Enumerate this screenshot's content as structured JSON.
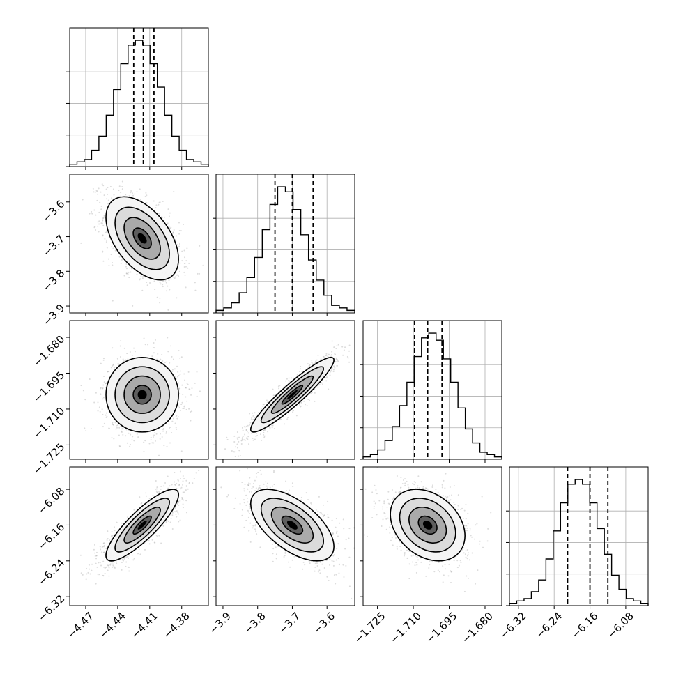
{
  "chart_data": {
    "type": "corner",
    "title": "",
    "parameters": [
      {
        "index": 0,
        "range": [
          -4.485,
          -4.355
        ],
        "ticks": [
          "−4.47",
          "−4.44",
          "−4.41",
          "−4.38"
        ],
        "tick_values": [
          -4.47,
          -4.44,
          -4.41,
          -4.38
        ]
      },
      {
        "index": 1,
        "range": [
          -3.92,
          -3.52
        ],
        "ticks": [
          "−3.9",
          "−3.8",
          "−3.7",
          "−3.6"
        ],
        "tick_values": [
          -3.9,
          -3.8,
          -3.7,
          -3.6
        ]
      },
      {
        "index": 2,
        "range": [
          -1.731,
          -1.673
        ],
        "ticks": [
          "−1.725",
          "−1.710",
          "−1.695",
          "−1.680"
        ],
        "tick_values": [
          -1.725,
          -1.71,
          -1.695,
          -1.68
        ]
      },
      {
        "index": 3,
        "range": [
          -6.34,
          -6.03
        ],
        "ticks": [
          "−6.32",
          "−6.24",
          "−6.16",
          "−6.08"
        ],
        "tick_values": [
          -6.32,
          -6.24,
          -6.16,
          -6.08
        ]
      }
    ],
    "quantiles": [
      {
        "param": 0,
        "values": [
          -4.425,
          -4.416,
          -4.406
        ]
      },
      {
        "param": 1,
        "values": [
          -3.75,
          -3.7,
          -3.64
        ]
      },
      {
        "param": 2,
        "values": [
          -1.7095,
          -1.704,
          -1.698
        ]
      },
      {
        "param": 3,
        "values": [
          -6.21,
          -6.16,
          -6.12
        ]
      }
    ],
    "histograms": [
      {
        "param": 0,
        "counts": [
          1,
          2,
          3,
          7,
          13,
          22,
          33,
          44,
          52,
          54,
          52,
          44,
          34,
          22,
          13,
          7,
          3,
          2,
          1
        ]
      },
      {
        "param": 1,
        "counts": [
          1,
          2,
          4,
          8,
          14,
          22,
          33,
          43,
          50,
          48,
          41,
          31,
          21,
          13,
          7,
          3,
          2,
          1
        ]
      },
      {
        "param": 2,
        "counts": [
          1,
          2,
          4,
          8,
          14,
          23,
          33,
          44,
          52,
          54,
          51,
          43,
          33,
          22,
          13,
          7,
          3,
          2,
          1
        ]
      },
      {
        "param": 3,
        "counts": [
          1,
          2,
          3,
          6,
          11,
          20,
          32,
          44,
          52,
          54,
          52,
          44,
          33,
          22,
          13,
          7,
          3,
          2,
          1
        ]
      }
    ],
    "pairs": [
      {
        "row": 1,
        "col": 0,
        "center": [
          -4.417,
          -3.705
        ],
        "sigma": [
          0.017,
          0.06
        ],
        "corr": -0.5
      },
      {
        "row": 2,
        "col": 0,
        "center": [
          -4.417,
          -1.704
        ],
        "sigma": [
          0.017,
          0.0078
        ],
        "corr": 0.0
      },
      {
        "row": 2,
        "col": 1,
        "center": [
          -3.7,
          -1.704
        ],
        "sigma": [
          0.06,
          0.0078
        ],
        "corr": 0.93
      },
      {
        "row": 3,
        "col": 0,
        "center": [
          -4.417,
          -6.16
        ],
        "sigma": [
          0.017,
          0.04
        ],
        "corr": 0.85
      },
      {
        "row": 3,
        "col": 1,
        "center": [
          -3.7,
          -6.16
        ],
        "sigma": [
          0.06,
          0.04
        ],
        "corr": -0.6
      },
      {
        "row": 3,
        "col": 2,
        "center": [
          -1.704,
          -6.16
        ],
        "sigma": [
          0.0078,
          0.04
        ],
        "corr": -0.3
      }
    ],
    "contour_levels": [
      0.5,
      1.0,
      1.5,
      2.0
    ],
    "grid": true,
    "colors": {
      "axes": "#000000",
      "grid": "#b0b0b0",
      "scatter": "#9a9a9a",
      "hist": "#000000",
      "density_max": "#000000"
    }
  }
}
